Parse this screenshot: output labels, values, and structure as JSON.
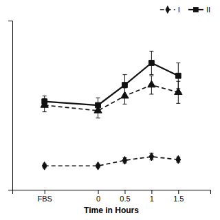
{
  "chart_data": {
    "type": "line",
    "x": [
      -1,
      0,
      0.5,
      1,
      1.5
    ],
    "series": [
      {
        "color": "#111111",
        "marker": "triangle",
        "line_style": "dashed",
        "values": [
          3.2,
          3.05,
          3.45,
          3.75,
          3.55
        ],
        "errors": [
          0.18,
          0.2,
          0.22,
          0.25,
          0.3
        ]
      },
      {
        "name": "II",
        "color": "#111111",
        "marker": "square",
        "line_style": "solid",
        "values": [
          3.3,
          3.2,
          3.75,
          4.35,
          4.0
        ],
        "errors": [
          0.15,
          0.2,
          0.28,
          0.32,
          0.35
        ]
      },
      {
        "name": "I",
        "color": "#111111",
        "marker": "diamond",
        "line_style": "dashed",
        "values": [
          1.55,
          1.55,
          1.7,
          1.8,
          1.72
        ],
        "errors": [
          0.05,
          0.05,
          0.07,
          0.09,
          0.07
        ]
      }
    ],
    "x_label": "Time in Hours",
    "xlim": [
      -1.6,
      2.1
    ],
    "xticks": [
      {
        "value": -1,
        "label": "FBS"
      },
      0,
      0.5,
      1,
      1.5
    ],
    "ylim": [
      0.9,
      5.5
    ],
    "tick_labels": "x",
    "grid": false,
    "legend": "upper right"
  }
}
